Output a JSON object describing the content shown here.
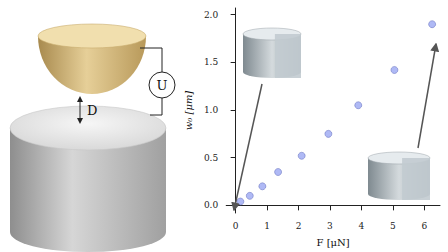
{
  "illustration": {
    "gap_label": "D",
    "voltage_label": "U"
  },
  "chart_data": {
    "type": "scatter",
    "x_label": "F [μN]",
    "y_label": "w₀ [μm]",
    "x": [
      0.15,
      0.45,
      0.85,
      1.35,
      2.1,
      2.95,
      3.9,
      5.05,
      6.25
    ],
    "values": [
      0.04,
      0.1,
      0.2,
      0.35,
      0.52,
      0.75,
      1.05,
      1.42,
      1.9
    ],
    "color": "#9ba8f2",
    "marker": "circle",
    "xlim": [
      -0.3,
      6.5
    ],
    "xticks": [
      0,
      1,
      2,
      3,
      4,
      5,
      6
    ],
    "ylim": [
      -0.08,
      2.07
    ],
    "yticks": [
      {
        "value": 0,
        "label": "0.0"
      },
      {
        "value": 0.5,
        "label": "0.5"
      },
      {
        "value": 1,
        "label": "1.0"
      },
      {
        "value": 1.5,
        "label": "1.5"
      },
      {
        "value": 2,
        "label": "2.0"
      }
    ],
    "grid": false
  }
}
